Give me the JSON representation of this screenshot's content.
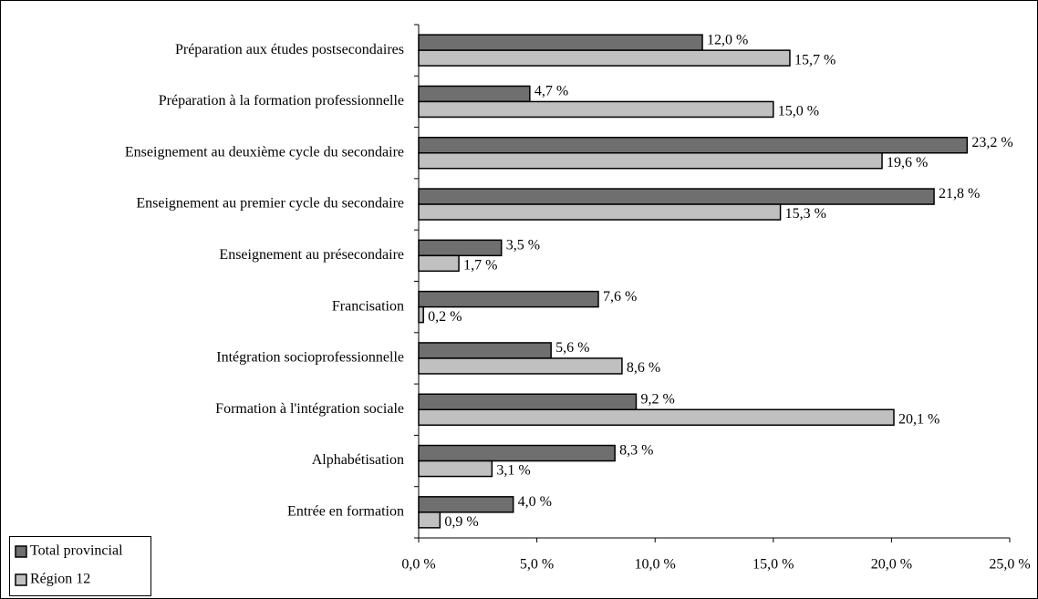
{
  "chart_data": {
    "type": "barh",
    "categories": [
      "Préparation aux études postsecondaires",
      "Préparation à la formation professionnelle",
      "Enseignement au deuxième cycle du secondaire",
      "Enseignement au premier cycle du secondaire",
      "Enseignement au présecondaire",
      "Francisation",
      "Intégration socioprofessionnelle",
      "Formation à l'intégration sociale",
      "Alphabétisation",
      "Entrée en formation"
    ],
    "series": [
      {
        "name": "Total provincial",
        "color": "#6f6f6f",
        "values": [
          12.0,
          4.7,
          23.2,
          21.8,
          3.5,
          7.6,
          5.6,
          9.2,
          8.3,
          4.0
        ],
        "value_labels": [
          "12,0 %",
          "4,7 %",
          "23,2 %",
          "21,8 %",
          "3,5 %",
          "7,6 %",
          "5,6 %",
          "9,2 %",
          "8,3 %",
          "4,0 %"
        ]
      },
      {
        "name": "Région 12",
        "color": "#c0c0c0",
        "values": [
          15.7,
          15.0,
          19.6,
          15.3,
          1.7,
          0.2,
          8.6,
          20.1,
          3.1,
          0.9
        ],
        "value_labels": [
          "15,7 %",
          "15,0 %",
          "19,6 %",
          "15,3 %",
          "1,7 %",
          "0,2 %",
          "8,6 %",
          "20,1 %",
          "3,1 %",
          "0,9 %"
        ]
      }
    ],
    "xlim": [
      0,
      25
    ],
    "xticks": [
      {
        "value": 0,
        "label": "0,0 %"
      },
      {
        "value": 5,
        "label": "5,0 %"
      },
      {
        "value": 10,
        "label": "10,0 %"
      },
      {
        "value": 15,
        "label": "15,0 %"
      },
      {
        "value": 20,
        "label": "20,0 %"
      },
      {
        "value": 25,
        "label": "25,0 %"
      }
    ],
    "legend": "bottom-left"
  }
}
